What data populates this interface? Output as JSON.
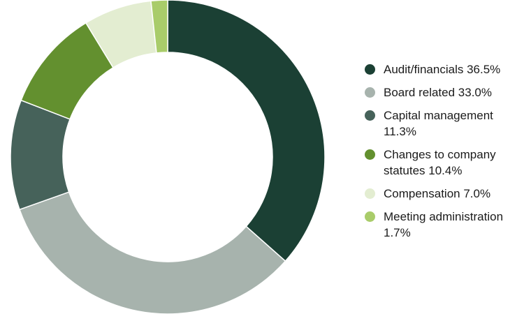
{
  "chart_data": {
    "type": "pie",
    "donut": true,
    "title": "",
    "legend_position": "right",
    "slices": [
      {
        "label": "Audit/financials 36.5%",
        "value": 36.5,
        "color": "#1b4034"
      },
      {
        "label": "Board related 33.0%",
        "value": 33.0,
        "color": "#a7b3ad"
      },
      {
        "label": "Capital management 11.3%",
        "value": 11.3,
        "color": "#46625a"
      },
      {
        "label": "Changes to company statutes 10.4%",
        "value": 10.4,
        "color": "#63902f"
      },
      {
        "label": "Compensation 7.0%",
        "value": 7.0,
        "color": "#e3edd1"
      },
      {
        "label": "Meeting administration 1.7%",
        "value": 1.7,
        "color": "#a9cc6a"
      }
    ]
  }
}
